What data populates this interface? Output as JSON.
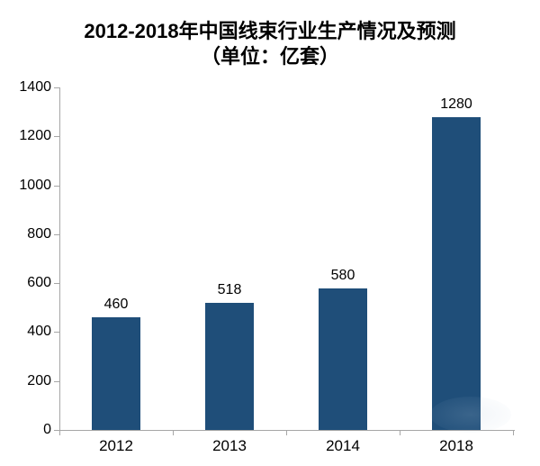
{
  "title": {
    "line1": "2012-2018年中国线束行业生产情况及预测",
    "line2": "（单位：亿套）"
  },
  "chart_data": {
    "type": "bar",
    "title": "2012-2018年中国线束行业生产情况及预测（单位：亿套）",
    "categories": [
      "2012",
      "2013",
      "2014",
      "2018"
    ],
    "values": [
      460,
      518,
      580,
      1280
    ],
    "data_labels": [
      "460",
      "518",
      "580",
      "1280"
    ],
    "xlabel": "",
    "ylabel": "",
    "ylim": [
      0,
      1400
    ],
    "ytick_interval": 200,
    "yticks": [
      "0",
      "200",
      "400",
      "600",
      "800",
      "1000",
      "1200",
      "1400"
    ],
    "grid": false,
    "legend": "none",
    "colors": {
      "bar": "#1F4E79",
      "axis": "#A6A6A6",
      "text": "#000000",
      "background": "#FFFFFF"
    }
  }
}
